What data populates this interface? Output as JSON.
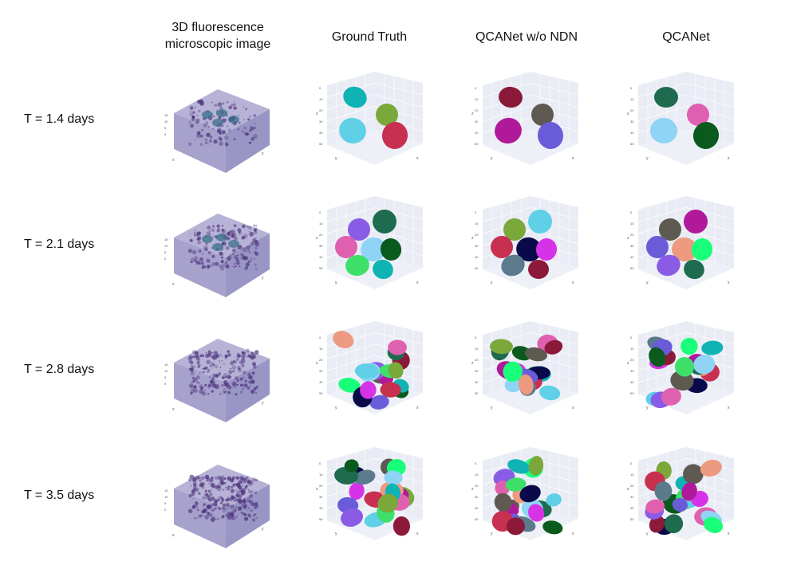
{
  "column_headers": [
    "3D fluorescence\nmicroscopic image",
    "Ground Truth",
    "QCANet w/o NDN",
    "QCANet"
  ],
  "row_labels": [
    "T = 1.4 days",
    "T = 2.1 days",
    "T = 2.8 days",
    "T = 3.5 days"
  ],
  "axis_labels": {
    "x": "x",
    "y": "y",
    "z": "z"
  },
  "colors": {
    "volume_face_top": "#b7b3d6",
    "volume_face_left": "#a6a2cc",
    "volume_face_right": "#9995c4",
    "volume_speckle": "#4a2f7a",
    "scene_wall": "#e9ecf5",
    "grid_line": "#ffffff",
    "palette": [
      "#1aff7a",
      "#5b7a8c",
      "#0fb3b3",
      "#8a5ce6",
      "#8b1a3a",
      "#7aa83a",
      "#1e6b4f",
      "#5e5a52",
      "#5fd0e6",
      "#e060b0",
      "#b0199a",
      "#c83050",
      "#8fd3f5",
      "#6a5cd9",
      "#0a0a4a",
      "#0a5a1e",
      "#ee9a80",
      "#d633e6",
      "#3ee06a"
    ]
  }
}
